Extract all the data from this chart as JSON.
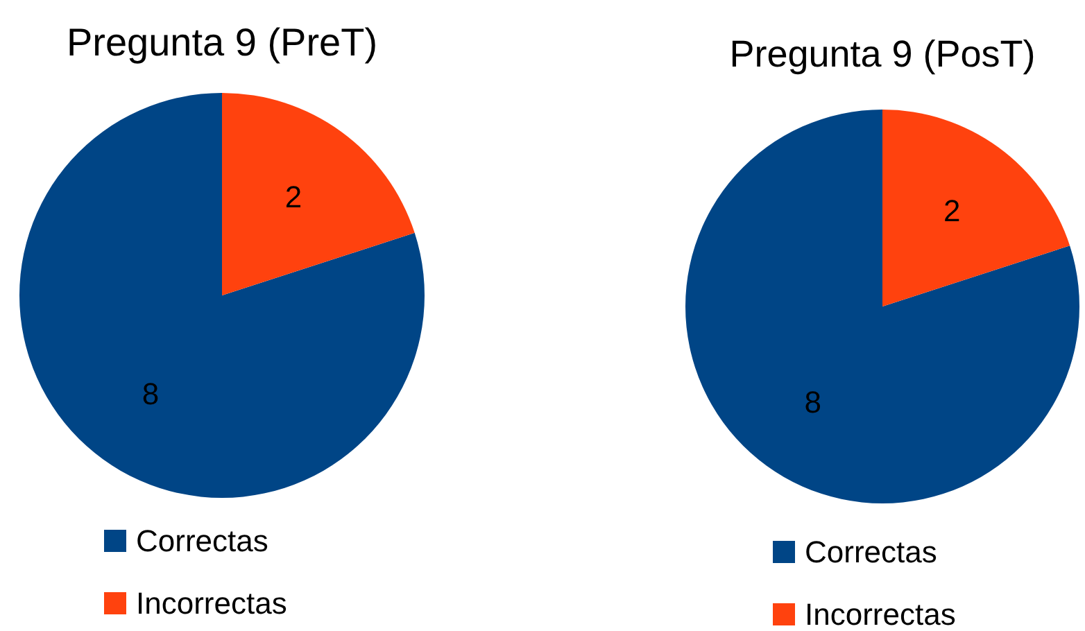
{
  "chart_data": [
    {
      "type": "pie",
      "title": "Pregunta 9 (PreT)",
      "categories": [
        "Correctas",
        "Incorrectas"
      ],
      "values": [
        8,
        2
      ],
      "colors": [
        "#004586",
        "#ff420e"
      ],
      "data_labels": true,
      "legend": "bottom"
    },
    {
      "type": "pie",
      "title": "Pregunta 9 (PosT)",
      "categories": [
        "Correctas",
        "Incorrectas"
      ],
      "values": [
        8,
        2
      ],
      "colors": [
        "#004586",
        "#ff420e"
      ],
      "data_labels": true,
      "legend": "bottom"
    }
  ]
}
